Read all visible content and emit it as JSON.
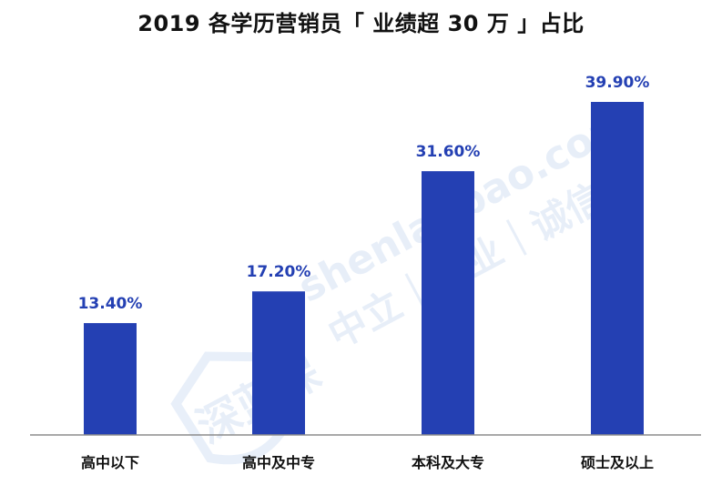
{
  "chart_data": {
    "type": "bar",
    "title": "2019 各学历营销员「 业绩超 30 万 」占比",
    "categories": [
      "高中以下",
      "高中及中专",
      "本科及大专",
      "硕士及以上"
    ],
    "values": [
      13.4,
      17.2,
      31.6,
      39.9
    ],
    "value_labels": [
      "13.40%",
      "17.20%",
      "31.60%",
      "39.90%"
    ],
    "unit": "%",
    "ylim": [
      0,
      45
    ],
    "grid": false,
    "legend": "none",
    "bar_color": "#2440b3",
    "label_color": "#2440b3"
  },
  "watermark": {
    "logo_text": "深蓝保",
    "site": "shenlanbao.com",
    "slogan": "中立｜专业｜诚信",
    "color": "#1e63c4"
  }
}
